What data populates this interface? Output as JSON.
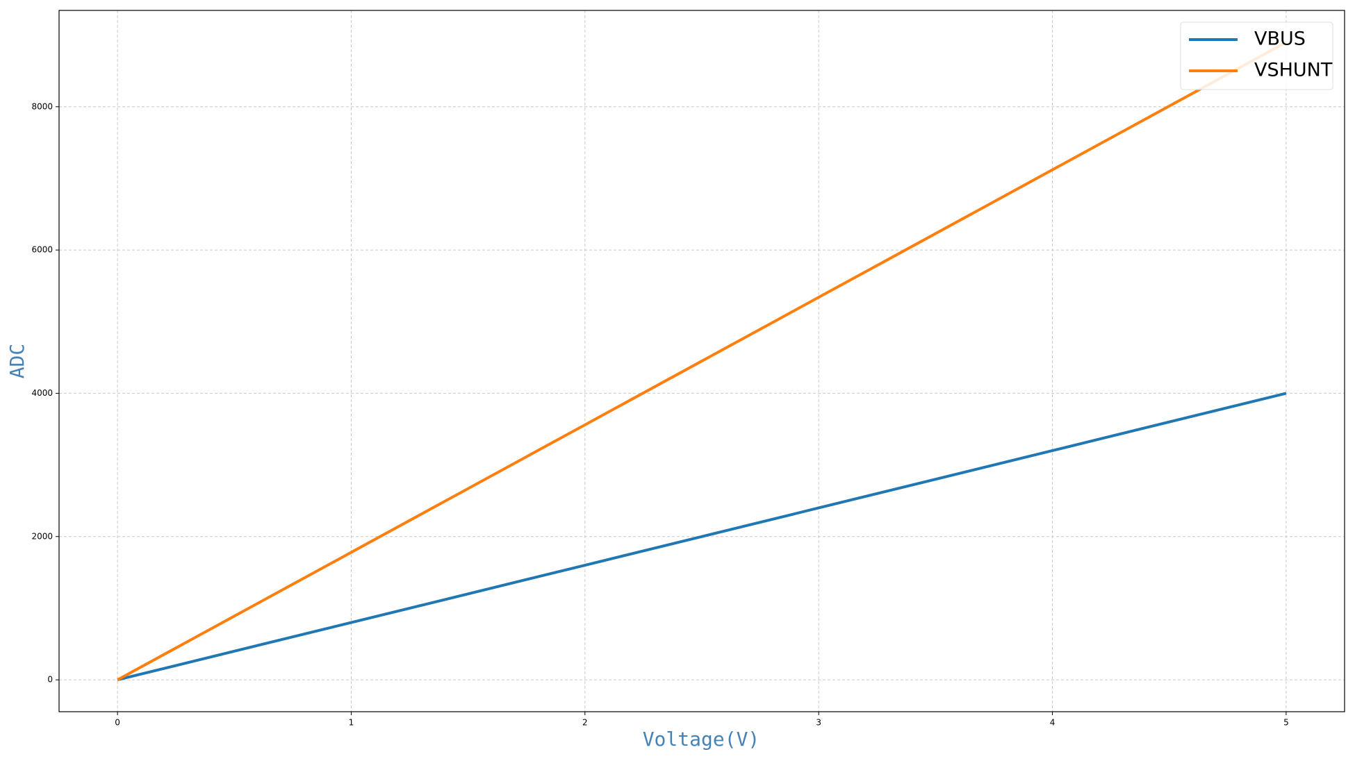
{
  "chart_data": {
    "type": "line",
    "x_label": "Voltage(V)",
    "y_label": "ADC",
    "x": [
      0,
      1,
      2,
      3,
      4,
      5
    ],
    "series": [
      {
        "name": "VBUS",
        "color": "#1f77b4",
        "values": [
          0,
          800,
          1600,
          2400,
          3200,
          4000
        ]
      },
      {
        "name": "VSHUNT",
        "color": "#ff7f0e",
        "values": [
          0,
          1780,
          3560,
          5340,
          7120,
          8900
        ]
      }
    ],
    "xlim": [
      -0.25,
      5.25
    ],
    "xticks": [
      0,
      1,
      2,
      3,
      4,
      5
    ],
    "ylim": [
      -445,
      9345
    ],
    "yticks": [
      0,
      2000,
      4000,
      6000,
      8000
    ],
    "grid": true,
    "legend": "upper right",
    "label_color": "#4682b4"
  }
}
